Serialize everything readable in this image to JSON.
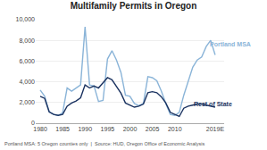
{
  "chart_data": {
    "type": "line",
    "title": "Multifamily Permits in Oregon",
    "footnote": "Portland MSA: 5 Oregon counties only  |  Source: HUD, Oregon Office of Economic Analysis",
    "x": [
      1980,
      1981,
      1982,
      1983,
      1984,
      1985,
      1986,
      1987,
      1988,
      1989,
      1990,
      1991,
      1992,
      1993,
      1994,
      1995,
      1996,
      1997,
      1998,
      1999,
      2000,
      2001,
      2002,
      2003,
      2004,
      2005,
      2006,
      2007,
      2008,
      2009,
      2010,
      2011,
      2012,
      2013,
      2014,
      2015,
      2016,
      2017,
      2018,
      2019
    ],
    "series": [
      {
        "name": "Portland MSA",
        "color": "#8ab4d8",
        "values": [
          3200,
          2600,
          1100,
          850,
          750,
          1000,
          3400,
          3100,
          3400,
          3700,
          9300,
          3700,
          3600,
          2100,
          2200,
          6200,
          7000,
          6100,
          4900,
          2700,
          2600,
          1900,
          1700,
          1900,
          4500,
          4400,
          4100,
          3100,
          1900,
          850,
          750,
          1050,
          2700,
          4100,
          5400,
          6100,
          6400,
          7400,
          8000,
          6600
        ]
      },
      {
        "name": "Rest of State",
        "color": "#1a3260",
        "values": [
          2600,
          2400,
          1100,
          850,
          750,
          850,
          1650,
          1950,
          2150,
          2450,
          3700,
          3400,
          3600,
          3400,
          3900,
          4400,
          4200,
          3600,
          2900,
          1950,
          1750,
          1550,
          1650,
          1850,
          2950,
          3050,
          2950,
          2550,
          1950,
          1050,
          850,
          650,
          1450,
          1650,
          1750,
          1850,
          1850,
          1750,
          1650,
          1550
        ]
      }
    ],
    "annotations": [
      {
        "text": "Portland MSA",
        "x": 2017.5,
        "y": 7600,
        "color": "#8ab4d8"
      },
      {
        "text": "Rest of State",
        "x": 2013.8,
        "y": 1850,
        "color": "#1a3260"
      }
    ],
    "xlim": [
      1979,
      2021
    ],
    "xticks": [
      1980,
      1985,
      1990,
      1995,
      2000,
      2005,
      2010,
      {
        "value": 2019,
        "label": "2019E"
      }
    ],
    "ylim": [
      0,
      10000
    ],
    "yticks": [
      0,
      {
        "value": 2000,
        "label": "2,000"
      },
      {
        "value": 4000,
        "label": "4,000"
      },
      {
        "value": 6000,
        "label": "6,000"
      },
      {
        "value": 8000,
        "label": "8,000"
      },
      {
        "value": 10000,
        "label": "10,000"
      }
    ],
    "grid": true
  }
}
